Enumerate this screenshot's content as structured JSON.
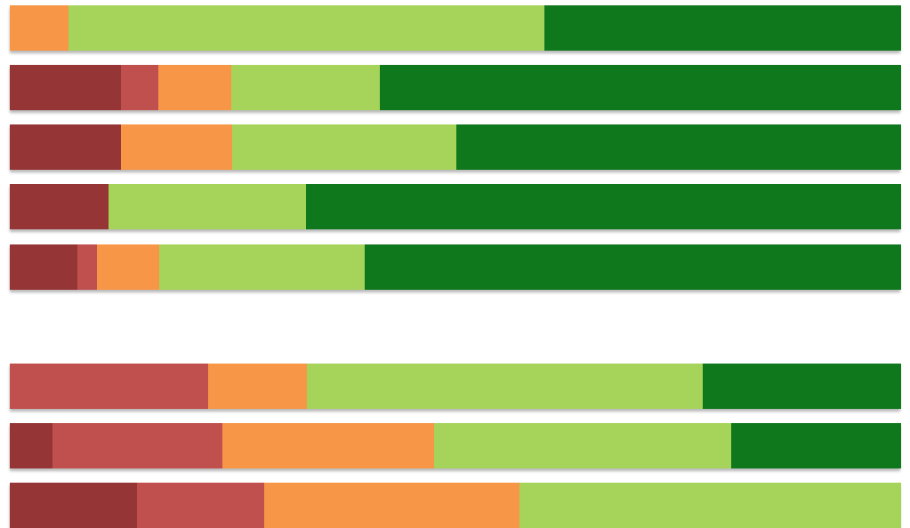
{
  "chart_data": {
    "type": "bar",
    "orientation": "horizontal",
    "stacked": "100%",
    "grid": false,
    "legend": "none",
    "colors": {
      "dark_red": "#963536",
      "red": "#c0504d",
      "orange": "#f79646",
      "light_green": "#a6d35a",
      "dark_green": "#0f781c"
    },
    "series_order": [
      "dark_red",
      "red",
      "orange",
      "light_green",
      "dark_green"
    ],
    "groups": [
      {
        "bars": [
          {
            "values": [
              0.0,
              0.0,
              6.6,
              53.4,
              40.0
            ]
          },
          {
            "values": [
              12.5,
              4.2,
              8.2,
              16.7,
              58.4
            ]
          },
          {
            "values": [
              12.5,
              0.0,
              12.5,
              25.1,
              49.9
            ]
          },
          {
            "values": [
              11.1,
              0.0,
              0.0,
              22.2,
              66.7
            ]
          },
          {
            "values": [
              7.6,
              2.2,
              7.0,
              23.1,
              60.1
            ]
          }
        ]
      },
      {
        "bars": [
          {
            "values": [
              0.0,
              22.3,
              11.1,
              44.4,
              22.2
            ]
          },
          {
            "values": [
              4.8,
              19.1,
              23.8,
              33.3,
              19.0
            ]
          },
          {
            "values": [
              14.3,
              14.3,
              28.6,
              42.8,
              0.0
            ]
          }
        ]
      }
    ]
  }
}
